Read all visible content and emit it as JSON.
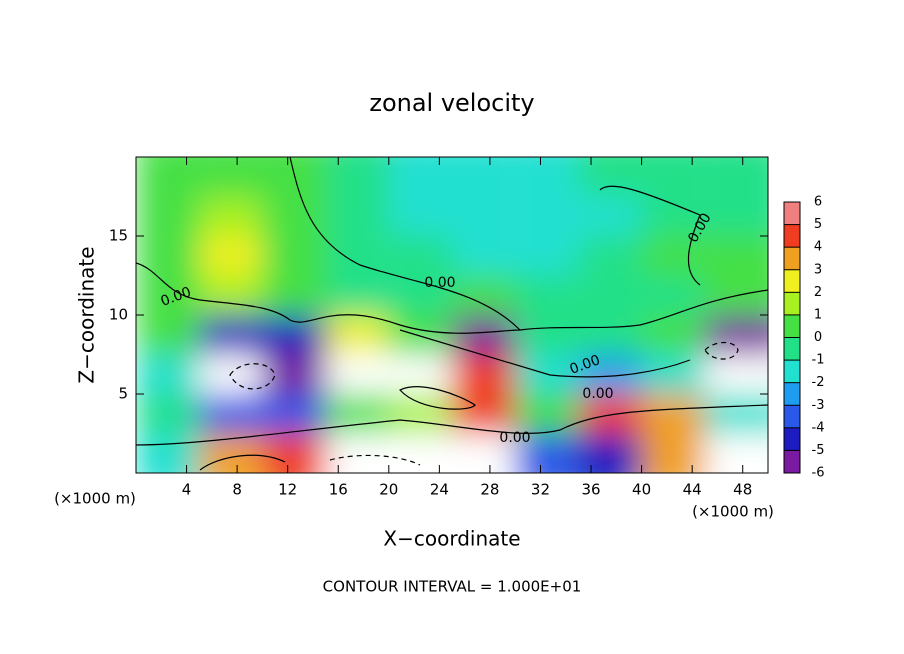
{
  "chart_data": {
    "type": "contour",
    "title": "zonal velocity",
    "x_label": "X−coordinate",
    "y_label": "Z−coordinate",
    "x_unit_label": "(×1000 m)",
    "y_unit_label": "(×1000 m)",
    "footnote": "CONTOUR INTERVAL = 1.000E+01",
    "x": [
      2.5,
      7.5,
      12.5,
      17.5,
      22.5,
      27.5,
      32.5,
      37.5,
      42.5,
      47.5
    ],
    "y": [
      1.25,
      3.75,
      6.25,
      8.75,
      11.25,
      13.75,
      16.25,
      18.75
    ],
    "z": [
      [
        -1,
        4,
        5,
        7,
        7,
        7,
        -3,
        -4,
        4,
        7
      ],
      [
        0,
        -3,
        -3,
        1,
        2,
        5,
        1,
        5,
        4,
        -1
      ],
      [
        -1,
        -7,
        -5,
        7,
        7,
        5,
        -1,
        -2,
        -1,
        -7
      ],
      [
        1,
        -4,
        -4,
        3,
        1,
        -5,
        0,
        0,
        1,
        -6
      ],
      [
        1,
        2,
        1,
        0,
        0,
        1,
        0,
        0,
        0,
        1
      ],
      [
        1,
        3,
        1,
        0,
        0,
        -1,
        -1,
        0,
        1,
        1
      ],
      [
        1,
        2,
        1,
        0,
        -1,
        -1,
        -1,
        -1,
        0,
        0
      ],
      [
        1,
        1,
        1,
        0,
        -1,
        -1,
        -1,
        0,
        0,
        0
      ]
    ],
    "xlim": [
      0,
      50
    ],
    "ylim": [
      0,
      20
    ],
    "xticks": [
      4,
      8,
      12,
      16,
      20,
      24,
      28,
      32,
      36,
      40,
      44,
      48
    ],
    "yticks": [
      5,
      10,
      15
    ],
    "levels": [
      -6,
      -5,
      -4,
      -3,
      -2,
      -1,
      0,
      1,
      2,
      3,
      4,
      5,
      6
    ],
    "colorbar_ticks": [
      6,
      5,
      4,
      3,
      2,
      1,
      0,
      -1,
      -2,
      -3,
      -4,
      -5,
      -6
    ],
    "colors": [
      "#7a1aa0",
      "#1c1cc0",
      "#2a58e8",
      "#1e9cf0",
      "#22e0d0",
      "#22e088",
      "#44e044",
      "#a8f020",
      "#f0f020",
      "#f0a020",
      "#f03c20",
      "#f08080"
    ],
    "contour_labels": [
      "0.00",
      "0.00",
      "0.00",
      "0.00",
      "0.00",
      "0.00"
    ]
  }
}
